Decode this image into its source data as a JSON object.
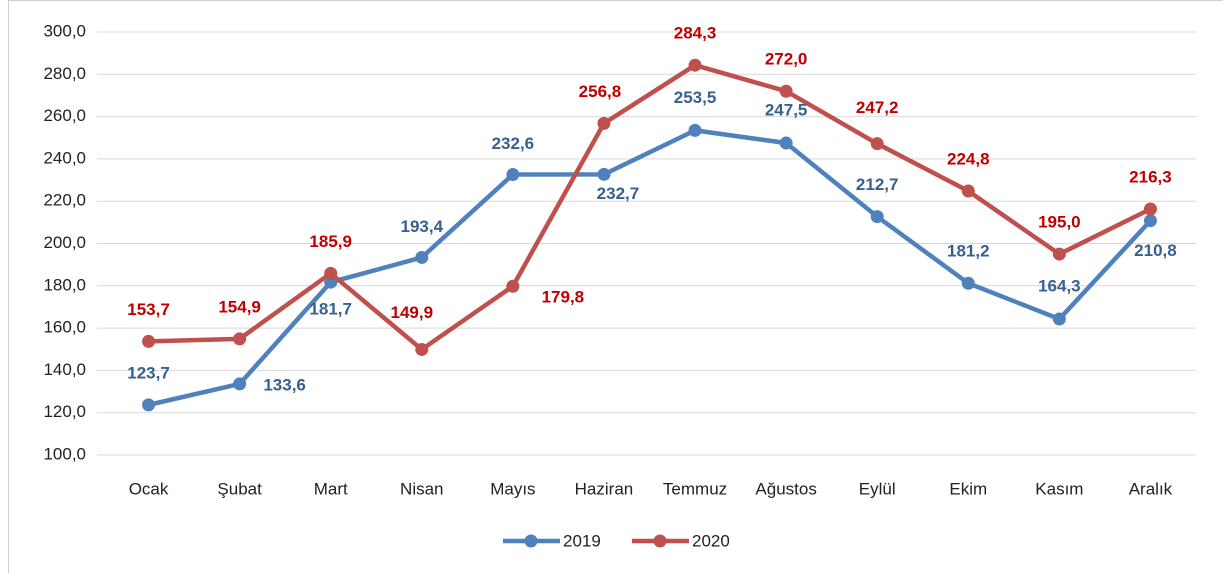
{
  "chart_data": {
    "type": "line",
    "categories": [
      "Ocak",
      "Şubat",
      "Mart",
      "Nisan",
      "Mayıs",
      "Haziran",
      "Temmuz",
      "Ağustos",
      "Eylül",
      "Ekim",
      "Kasım",
      "Aralık"
    ],
    "series": [
      {
        "name": "2019",
        "color": "#4f81bd",
        "label_color": "#376092",
        "values": [
          123.7,
          133.6,
          181.7,
          193.4,
          232.6,
          232.7,
          253.5,
          247.5,
          212.7,
          181.2,
          164.3,
          210.8
        ],
        "value_labels": [
          "123,7",
          "133,6",
          "181,7",
          "193,4",
          "232,6",
          "232,7",
          "253,5",
          "247,5",
          "212,7",
          "181,2",
          "164,3",
          "210,8"
        ]
      },
      {
        "name": "2020",
        "color": "#c0504d",
        "label_color": "#c00000",
        "values": [
          153.7,
          154.9,
          185.9,
          149.9,
          179.8,
          256.8,
          284.3,
          272.0,
          247.2,
          224.8,
          195.0,
          216.3
        ],
        "value_labels": [
          "153,7",
          "154,9",
          "185,9",
          "149,9",
          "179,8",
          "256,8",
          "284,3",
          "272,0",
          "247,2",
          "224,8",
          "195,0",
          "216,3"
        ]
      }
    ],
    "ylim": [
      100,
      300
    ],
    "yticks": [
      {
        "value": 100,
        "label": "100,0"
      },
      {
        "value": 120,
        "label": "120,0"
      },
      {
        "value": 140,
        "label": "140,0"
      },
      {
        "value": 160,
        "label": "160,0"
      },
      {
        "value": 180,
        "label": "180,0"
      },
      {
        "value": 200,
        "label": "200,0"
      },
      {
        "value": 220,
        "label": "220,0"
      },
      {
        "value": 240,
        "label": "240,0"
      },
      {
        "value": 260,
        "label": "260,0"
      },
      {
        "value": 280,
        "label": "280,0"
      },
      {
        "value": 300,
        "label": "300,0"
      }
    ],
    "grid": true,
    "legend": "bottom"
  }
}
